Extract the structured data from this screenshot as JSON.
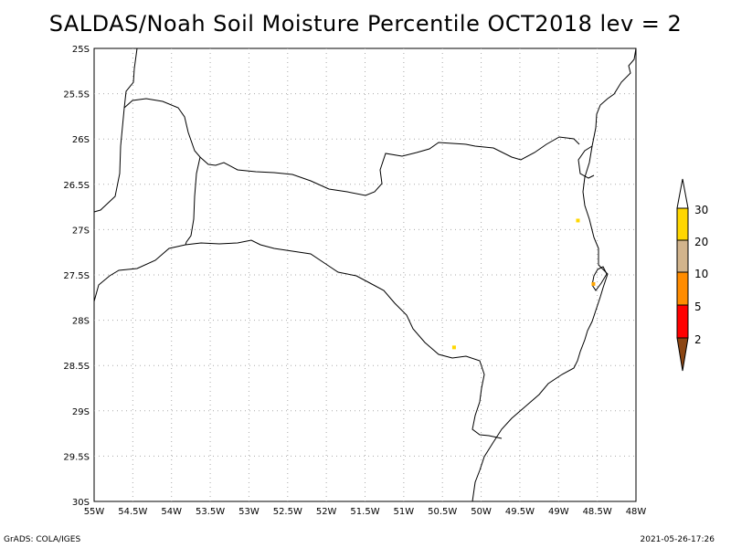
{
  "title": "SALDAS/Noah Soil Moisture Percentile OCT2018 lev = 2",
  "footer": {
    "left": "GrADS: COLA/IGES",
    "right": "2021-05-26-17:26"
  },
  "axes": {
    "x_labels": [
      "55W",
      "54.5W",
      "54W",
      "53.5W",
      "53W",
      "52.5W",
      "52W",
      "51.5W",
      "51W",
      "50.5W",
      "50W",
      "49.5W",
      "49W",
      "48.5W",
      "48W"
    ],
    "y_labels": [
      "25S",
      "25.5S",
      "26S",
      "26.5S",
      "27S",
      "27.5S",
      "28S",
      "28.5S",
      "29S",
      "29.5S",
      "30S"
    ],
    "lon_range": [
      -55,
      -48
    ],
    "lat_range": [
      -30,
      -25
    ]
  },
  "legend": {
    "labels": [
      "2",
      "5",
      "10",
      "20",
      "30"
    ],
    "colors": {
      "below_2": "#8b4513",
      "2_5": "#ff0000",
      "5_10": "#ff8c00",
      "10_20": "#d2b48c",
      "20_30": "#ffd700",
      "above_30": "#ffffff"
    }
  },
  "highlight_points": [
    {
      "lon": -50.35,
      "lat": -28.3,
      "color": "#ffd700"
    },
    {
      "lon": -48.75,
      "lat": -26.9,
      "color": "#ffd700"
    },
    {
      "lon": -48.55,
      "lat": -27.6,
      "color": "#ffa500"
    }
  ]
}
